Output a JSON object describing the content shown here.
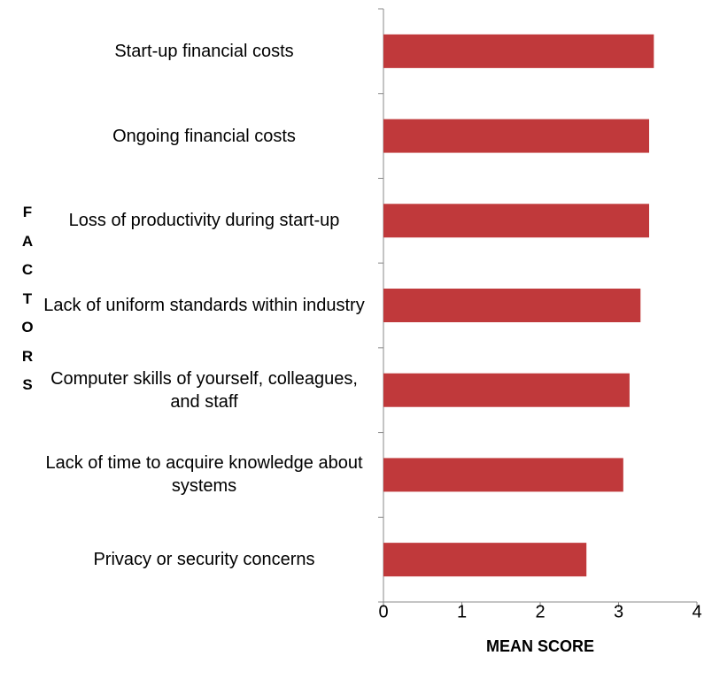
{
  "chart_data": {
    "type": "bar",
    "orientation": "horizontal",
    "xlabel": "MEAN SCORE",
    "ylabel": "FACTORS",
    "categories": [
      "Start-up financial costs",
      "Ongoing financial costs",
      "Loss of productivity during start-up",
      "Lack of uniform standards within industry",
      "Computer skills of yourself, colleagues, and staff",
      "Lack of time to acquire knowledge about systems",
      "Privacy or security concerns"
    ],
    "values": [
      3.45,
      3.39,
      3.39,
      3.28,
      3.14,
      3.06,
      2.59
    ],
    "color": "#c0393b",
    "xlim": [
      0,
      4
    ],
    "xticks": [
      0,
      1,
      2,
      3,
      4
    ],
    "grid": false
  }
}
